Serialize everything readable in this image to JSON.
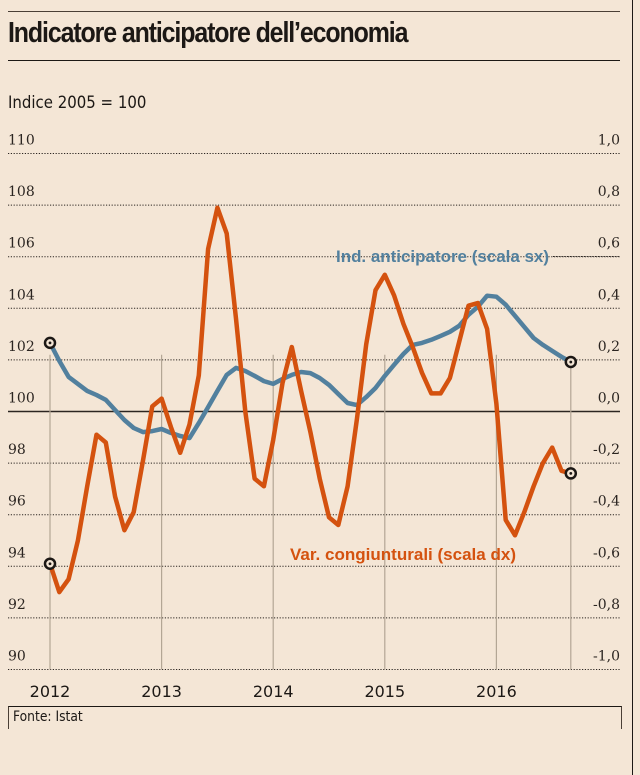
{
  "header": {
    "title": "Indicatore anticipatore dell’economia",
    "subtitle": "Indice 2005 = 100"
  },
  "footer": {
    "source": "Fonte: Istat"
  },
  "colors": {
    "background": "#f4e6d6",
    "series_left": "#52809e",
    "series_right": "#d4520f",
    "text": "#1c1815"
  },
  "chart_data": {
    "type": "line",
    "title": "Indicatore anticipatore dell’economia",
    "subtitle": "Indice 2005 = 100",
    "xlabel": "",
    "ylabel_left": "Indice 2005 = 100",
    "ylabel_right": "Var. congiunturali",
    "x_start": "2012-01",
    "x_end": "2016-09",
    "x_frequency": "monthly",
    "x_tick_labels": [
      "2012",
      "2013",
      "2014",
      "2015",
      "2016"
    ],
    "ylim_left": [
      90,
      110
    ],
    "ylim_right": [
      -1.0,
      1.0
    ],
    "y_ticks_left": [
      "110",
      "108",
      "106",
      "104",
      "102",
      "100",
      "98",
      "96",
      "94",
      "92",
      "90"
    ],
    "y_ticks_right": [
      "1,0",
      "0,8",
      "0,6",
      "0,4",
      "0,2",
      "0,0",
      "-0,2",
      "-0,4",
      "-0,6",
      "-0,8",
      "-1,0"
    ],
    "grid": true,
    "series": [
      {
        "name": "Ind. anticipatore (scala sx)",
        "axis": "left",
        "values": [
          102.66,
          101.96,
          101.34,
          101.07,
          100.8,
          100.64,
          100.45,
          100.06,
          99.67,
          99.36,
          99.2,
          99.24,
          99.32,
          99.17,
          99.05,
          98.97,
          99.55,
          100.17,
          100.8,
          101.42,
          101.69,
          101.57,
          101.38,
          101.18,
          101.07,
          101.26,
          101.42,
          101.53,
          101.49,
          101.3,
          101.03,
          100.68,
          100.33,
          100.25,
          100.56,
          100.91,
          101.38,
          101.81,
          102.23,
          102.58,
          102.66,
          102.78,
          102.93,
          103.09,
          103.32,
          103.75,
          104.06,
          104.49,
          104.45,
          104.14,
          103.71,
          103.28,
          102.85,
          102.58,
          102.35,
          102.12,
          101.92
        ]
      },
      {
        "name": "Var. congiunturali (scala dx)",
        "axis": "right",
        "values": [
          -0.59,
          -0.7,
          -0.65,
          -0.5,
          -0.29,
          -0.09,
          -0.12,
          -0.33,
          -0.46,
          -0.39,
          -0.19,
          0.02,
          0.05,
          -0.06,
          -0.16,
          -0.05,
          0.14,
          0.63,
          0.79,
          0.69,
          0.36,
          0.0,
          -0.26,
          -0.29,
          -0.11,
          0.11,
          0.25,
          0.08,
          -0.08,
          -0.26,
          -0.41,
          -0.44,
          -0.29,
          -0.03,
          0.26,
          0.47,
          0.53,
          0.45,
          0.34,
          0.25,
          0.15,
          0.07,
          0.07,
          0.13,
          0.27,
          0.41,
          0.42,
          0.32,
          0.03,
          -0.42,
          -0.48,
          -0.39,
          -0.29,
          -0.2,
          -0.14,
          -0.23,
          -0.24
        ]
      }
    ],
    "annotations": [
      "Ind. anticipatore (scala sx)",
      "Var. congiunturali (scala dx)"
    ],
    "markers": "circle markers at first and last point of each series"
  }
}
